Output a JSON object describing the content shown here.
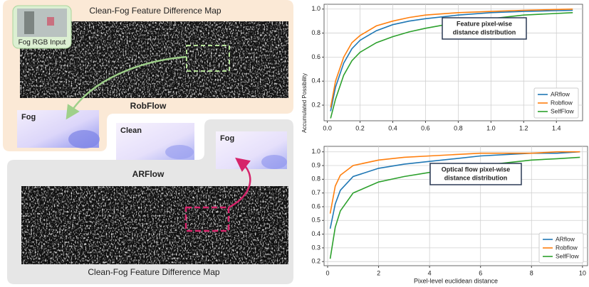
{
  "left_panel": {
    "top_map_title": "Clean-Fog Feature Difference Map",
    "fog_rgb_label": "Fog RGB Input",
    "robflow_label": "RobFlow",
    "robflow_fog_label": "Fog",
    "clean_label": "Clean",
    "arflow_fog_label": "Fog",
    "arflow_label": "ARFlow",
    "bottom_map_title": "Clean-Fog Feature Difference Map"
  },
  "chart_data": [
    {
      "type": "line",
      "ylabel": "Accumulated Possibility",
      "annotation": [
        "Feature pixel-wise",
        "distance distribution"
      ],
      "x": [
        0.02,
        0.05,
        0.1,
        0.15,
        0.2,
        0.3,
        0.4,
        0.5,
        0.6,
        0.8,
        1.0,
        1.2,
        1.5
      ],
      "series": [
        {
          "name": "ARflow",
          "color": "#1f77b4",
          "values": [
            0.15,
            0.35,
            0.55,
            0.67,
            0.74,
            0.82,
            0.87,
            0.9,
            0.92,
            0.95,
            0.97,
            0.98,
            0.99
          ]
        },
        {
          "name": "Robflow",
          "color": "#ff7f0e",
          "values": [
            0.18,
            0.4,
            0.6,
            0.72,
            0.78,
            0.86,
            0.9,
            0.93,
            0.95,
            0.97,
            0.98,
            0.99,
            1.0
          ]
        },
        {
          "name": "SelfFlow",
          "color": "#2ca02c",
          "values": [
            0.09,
            0.25,
            0.45,
            0.57,
            0.64,
            0.72,
            0.77,
            0.81,
            0.84,
            0.89,
            0.92,
            0.95,
            0.97
          ]
        }
      ],
      "xlim": [
        -0.02,
        1.56
      ],
      "ylim": [
        0.07,
        1.04
      ],
      "xticks": [
        {
          "value": 0,
          "label": "0.0"
        },
        0.2,
        0.4,
        0.6,
        0.8,
        {
          "value": 1,
          "label": "1.0"
        },
        1.2,
        1.4
      ],
      "yticks": [
        0.2,
        0.4,
        0.6,
        0.8,
        {
          "value": 1,
          "label": "1.0"
        }
      ],
      "grid": true,
      "legend": "lower right"
    },
    {
      "type": "line",
      "xlabel": "Pixel-level euclidean distance",
      "annotation": [
        "Optical flow pixel-wise",
        "distance distribution"
      ],
      "x": [
        0.1,
        0.3,
        0.5,
        1,
        2,
        3,
        4,
        5,
        6,
        7,
        8,
        9,
        9.9
      ],
      "series": [
        {
          "name": "ARflow",
          "color": "#1f77b4",
          "values": [
            0.44,
            0.62,
            0.72,
            0.82,
            0.88,
            0.91,
            0.93,
            0.95,
            0.97,
            0.98,
            0.99,
            0.99,
            1.0
          ]
        },
        {
          "name": "Robflow",
          "color": "#ff7f0e",
          "values": [
            0.55,
            0.75,
            0.83,
            0.9,
            0.94,
            0.96,
            0.97,
            0.98,
            0.99,
            0.99,
            0.99,
            1.0,
            1.0
          ]
        },
        {
          "name": "SelfFlow",
          "color": "#2ca02c",
          "values": [
            0.22,
            0.45,
            0.57,
            0.7,
            0.78,
            0.82,
            0.85,
            0.87,
            0.9,
            0.92,
            0.94,
            0.95,
            0.96
          ]
        }
      ],
      "xlim": [
        -0.14,
        10.2
      ],
      "ylim": [
        0.17,
        1.04
      ],
      "xticks": [
        0,
        2,
        4,
        6,
        8,
        10
      ],
      "yticks": [
        0.2,
        0.3,
        0.4,
        0.5,
        0.6,
        0.7,
        0.8,
        0.9,
        {
          "value": 1,
          "label": "1.0"
        }
      ],
      "grid": true,
      "legend": "lower right"
    }
  ]
}
